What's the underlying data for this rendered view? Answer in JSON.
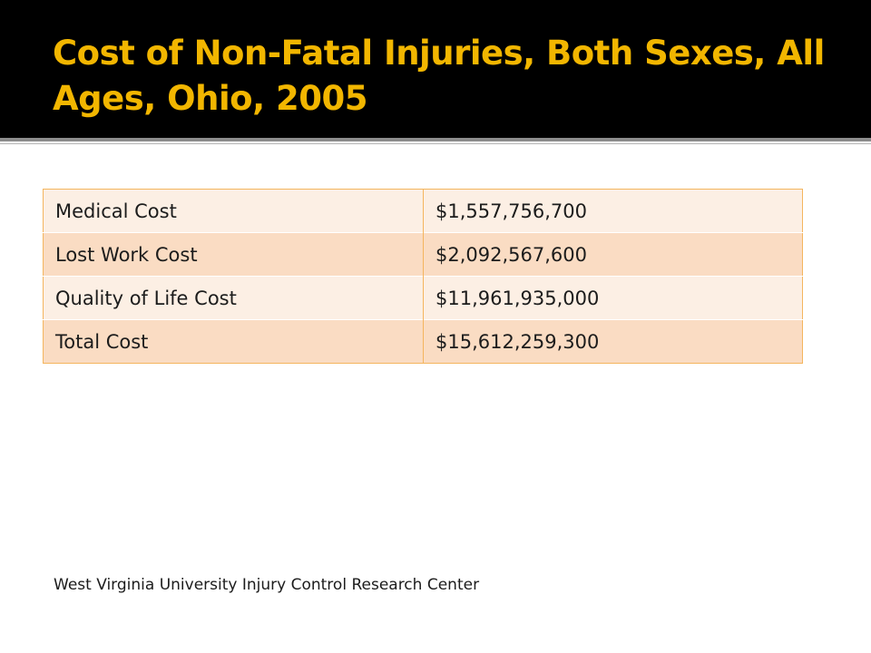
{
  "slide": {
    "title": "Cost of Non-Fatal Injuries, Both Sexes, All Ages, Ohio, 2005",
    "footer": "West Virginia University Injury Control Research Center"
  },
  "table": {
    "rows": [
      {
        "label": "Medical Cost",
        "value": "$1,557,756,700"
      },
      {
        "label": "Lost Work Cost",
        "value": "$2,092,567,600"
      },
      {
        "label": "Quality of Life Cost",
        "value": "$11,961,935,000"
      },
      {
        "label": "Total Cost",
        "value": "$15,612,259,300"
      }
    ]
  },
  "colors": {
    "title_background": "#000000",
    "title_text": "#f2b600",
    "table_border": "#f4b55e",
    "row_light": "#fcefe4",
    "row_dark": "#fadcc3"
  }
}
